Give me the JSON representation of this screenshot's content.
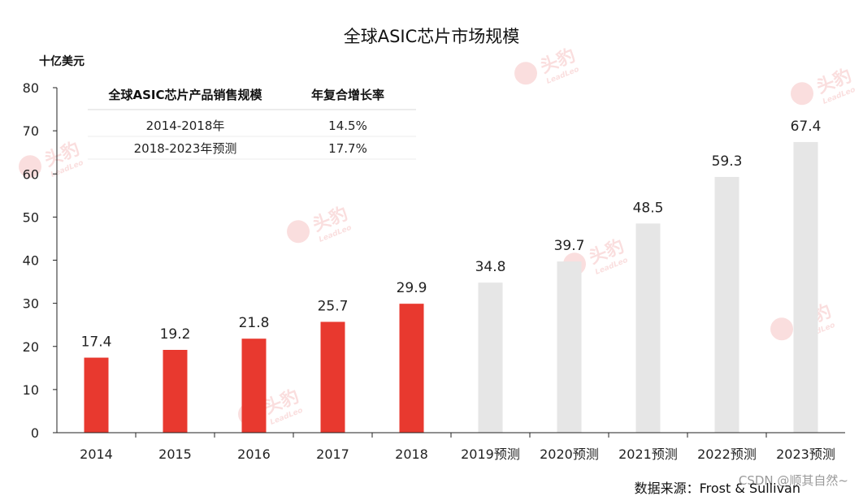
{
  "chart_data": {
    "type": "bar",
    "title": "全球ASIC芯片市场规模",
    "unit_label": "十亿美元",
    "categories": [
      "2014",
      "2015",
      "2016",
      "2017",
      "2018",
      "2019预测",
      "2020预测",
      "2021预测",
      "2022预测",
      "2023预测"
    ],
    "values": [
      17.4,
      19.2,
      21.8,
      25.7,
      29.9,
      34.8,
      39.7,
      48.5,
      59.3,
      67.4
    ],
    "value_labels": [
      "17.4",
      "19.2",
      "21.8",
      "25.7",
      "29.9",
      "34.8",
      "39.7",
      "48.5",
      "59.3",
      "67.4"
    ],
    "actual_color": "#e8392f",
    "forecast_color": "#e6e6e6",
    "forecast_from_index": 5,
    "ylim": [
      0,
      80
    ],
    "yticks": [
      "0",
      "10",
      "20",
      "30",
      "40",
      "50",
      "60",
      "70",
      "80"
    ],
    "grid": false,
    "legend": "none",
    "inset_table": {
      "headers": [
        "全球ASIC芯片产品销售规模",
        "年复合增长率"
      ],
      "rows": [
        [
          "2014-2018年",
          "14.5%"
        ],
        [
          "2018-2023年预测",
          "17.7%"
        ]
      ]
    },
    "source": "数据来源：Frost & Sullivan",
    "watermark_text": "CSDN @顺其自然~",
    "logo_text": "头豹",
    "logo_subtext": "LeadLeo"
  }
}
